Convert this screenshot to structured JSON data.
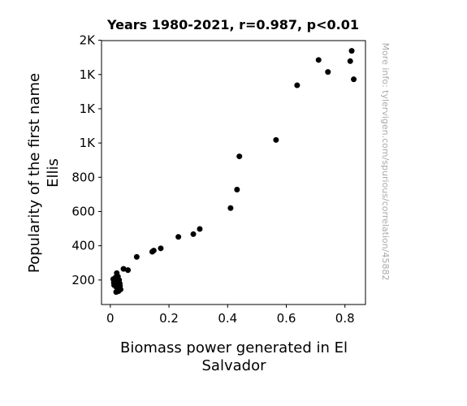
{
  "chart_data": {
    "type": "scatter",
    "title": "Years 1980-2021, r=0.987, p<0.01",
    "xlabel_lines": [
      "Biomass power generated in El",
      "Salvador"
    ],
    "ylabel_lines": [
      "Popularity of the first name",
      "Ellis"
    ],
    "xlim": [
      -0.03,
      0.87
    ],
    "ylim": [
      57,
      1598
    ],
    "x_ticks": [
      {
        "value": 0,
        "label": "0"
      },
      {
        "value": 0.2,
        "label": "0.2"
      },
      {
        "value": 0.4,
        "label": "0.4"
      },
      {
        "value": 0.6,
        "label": "0.6"
      },
      {
        "value": 0.8,
        "label": "0.8"
      }
    ],
    "y_ticks": [
      {
        "value": 200,
        "label": "200"
      },
      {
        "value": 400,
        "label": "400"
      },
      {
        "value": 600,
        "label": "600"
      },
      {
        "value": 800,
        "label": "800"
      },
      {
        "value": 1000,
        "label": "1K"
      },
      {
        "value": 1200,
        "label": "1K"
      },
      {
        "value": 1400,
        "label": "1K"
      },
      {
        "value": 1600,
        "label": "2K"
      }
    ],
    "grid": false,
    "marker_color": "#000000",
    "points": [
      {
        "x": 0.01,
        "y": 205
      },
      {
        "x": 0.012,
        "y": 185
      },
      {
        "x": 0.013,
        "y": 170
      },
      {
        "x": 0.015,
        "y": 195
      },
      {
        "x": 0.018,
        "y": 215
      },
      {
        "x": 0.02,
        "y": 160
      },
      {
        "x": 0.02,
        "y": 130
      },
      {
        "x": 0.022,
        "y": 240
      },
      {
        "x": 0.024,
        "y": 190
      },
      {
        "x": 0.025,
        "y": 175
      },
      {
        "x": 0.026,
        "y": 220
      },
      {
        "x": 0.028,
        "y": 150
      },
      {
        "x": 0.028,
        "y": 135
      },
      {
        "x": 0.03,
        "y": 200
      },
      {
        "x": 0.032,
        "y": 180
      },
      {
        "x": 0.033,
        "y": 165
      },
      {
        "x": 0.035,
        "y": 145
      },
      {
        "x": 0.045,
        "y": 265
      },
      {
        "x": 0.06,
        "y": 258
      },
      {
        "x": 0.09,
        "y": 335
      },
      {
        "x": 0.143,
        "y": 365
      },
      {
        "x": 0.148,
        "y": 372
      },
      {
        "x": 0.172,
        "y": 385
      },
      {
        "x": 0.232,
        "y": 452
      },
      {
        "x": 0.283,
        "y": 468
      },
      {
        "x": 0.305,
        "y": 498
      },
      {
        "x": 0.41,
        "y": 620
      },
      {
        "x": 0.432,
        "y": 728
      },
      {
        "x": 0.44,
        "y": 922
      },
      {
        "x": 0.565,
        "y": 1018
      },
      {
        "x": 0.637,
        "y": 1337
      },
      {
        "x": 0.71,
        "y": 1485
      },
      {
        "x": 0.742,
        "y": 1415
      },
      {
        "x": 0.818,
        "y": 1478
      },
      {
        "x": 0.823,
        "y": 1538
      },
      {
        "x": 0.83,
        "y": 1372
      }
    ]
  },
  "watermark": "More info: tylervigen.com/spurious/correlation/45882"
}
